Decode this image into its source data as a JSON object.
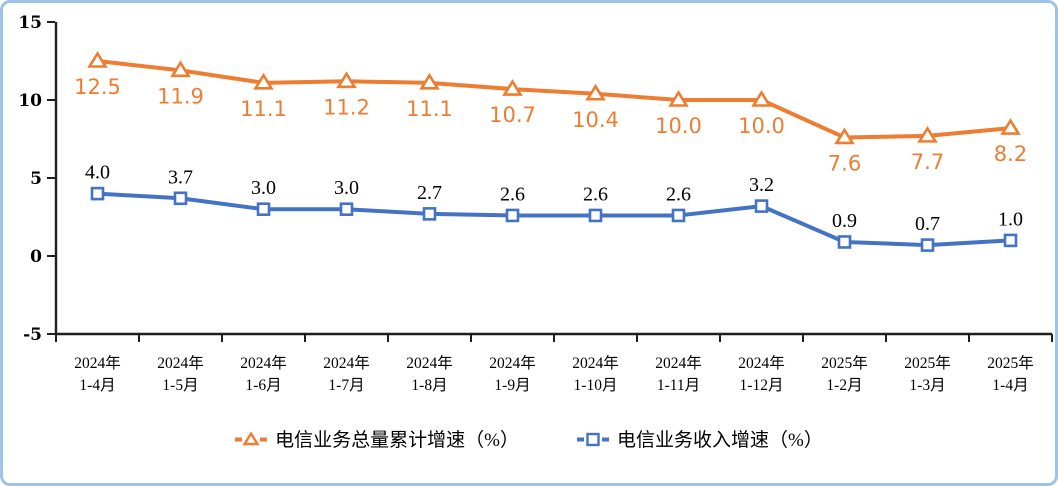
{
  "chart_data": {
    "type": "line",
    "categories": [
      [
        "2024年",
        "1-4月"
      ],
      [
        "2024年",
        "1-5月"
      ],
      [
        "2024年",
        "1-6月"
      ],
      [
        "2024年",
        "1-7月"
      ],
      [
        "2024年",
        "1-8月"
      ],
      [
        "2024年",
        "1-9月"
      ],
      [
        "2024年",
        "1-10月"
      ],
      [
        "2024年",
        "1-11月"
      ],
      [
        "2024年",
        "1-12月"
      ],
      [
        "2025年",
        "1-2月"
      ],
      [
        "2025年",
        "1-3月"
      ],
      [
        "2025年",
        "1-4月"
      ]
    ],
    "series": [
      {
        "name": "电信业务总量累计增速（%）",
        "values": [
          12.5,
          11.9,
          11.1,
          11.2,
          11.1,
          10.7,
          10.4,
          10.0,
          10.0,
          7.6,
          7.7,
          8.2
        ],
        "color": "#ED7D31",
        "marker": "triangle",
        "label_color": "#ED7D31",
        "label_position": "below",
        "label_font": "sans"
      },
      {
        "name": "电信业务收入增速（%）",
        "values": [
          4.0,
          3.7,
          3.0,
          3.0,
          2.7,
          2.6,
          2.6,
          2.6,
          3.2,
          0.9,
          0.7,
          1.0
        ],
        "color": "#4472C4",
        "marker": "square",
        "label_color": "#000000",
        "label_position": "above",
        "label_font": "serif"
      }
    ],
    "y_axis": {
      "min": -5,
      "max": 15,
      "step": 5,
      "ticks": [
        15,
        10,
        5,
        0,
        -5
      ]
    },
    "x_axis": {
      "tick_marks": "between-categories"
    },
    "grid": false,
    "legend_position": "bottom",
    "value_decimals": 1
  },
  "frame": {
    "border_color": "#9DC3E6",
    "background": "#FFFFFF",
    "axis_color": "#1F1F1F"
  }
}
